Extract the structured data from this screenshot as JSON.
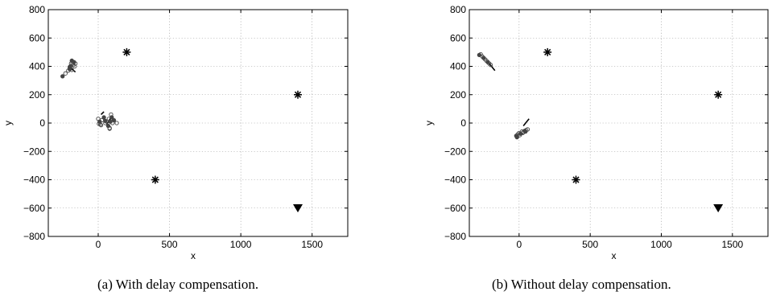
{
  "chart_data": [
    {
      "type": "scatter",
      "caption": "(a)  With delay compensation.",
      "xlabel": "x",
      "ylabel": "y",
      "xlim": [
        -350,
        1750
      ],
      "ylim": [
        -800,
        800
      ],
      "xticks": [
        0,
        500,
        1000,
        1500
      ],
      "xtick_labels": [
        "0",
        "500",
        "1000",
        "1500"
      ],
      "yticks": [
        -800,
        -600,
        -400,
        -200,
        0,
        200,
        400,
        600,
        800
      ],
      "ytick_labels": [
        "−800",
        "−600",
        "−400",
        "−200",
        "0",
        "200",
        "400",
        "600",
        "800"
      ],
      "grid": true,
      "series": [
        {
          "marker": "asterisk",
          "x": [
            200,
            1400,
            400
          ],
          "y": [
            500,
            200,
            -400
          ]
        },
        {
          "marker": "triangle-down",
          "x": [
            1400
          ],
          "y": [
            -600
          ]
        },
        {
          "marker": "circle-dot",
          "x": [
            -250,
            -230,
            -210,
            -200,
            -195,
            -190,
            -185,
            -180,
            -175,
            -170,
            -165,
            -160,
            -200,
            -185,
            0,
            10,
            15,
            25,
            40,
            50,
            60,
            70,
            75,
            80,
            85,
            90,
            100,
            110,
            130,
            20,
            50,
            80,
            5,
            95
          ],
          "y": [
            330,
            350,
            370,
            380,
            400,
            420,
            440,
            420,
            410,
            430,
            400,
            420,
            395,
            375,
            30,
            10,
            -10,
            20,
            40,
            0,
            10,
            -20,
            30,
            -40,
            10,
            60,
            0,
            20,
            0,
            -15,
            15,
            -35,
            -5,
            40
          ]
        }
      ],
      "arrows": [
        {
          "x": [
            -200,
            -160
          ],
          "y": [
            395,
            360
          ]
        },
        {
          "x": [
            60,
            90
          ],
          "y": [
            -10,
            40
          ]
        },
        {
          "x": [
            20,
            40
          ],
          "y": [
            60,
            80
          ]
        }
      ]
    },
    {
      "type": "scatter",
      "caption": "(b)  Without delay compensation.",
      "xlabel": "x",
      "ylabel": "y",
      "xlim": [
        -350,
        1750
      ],
      "ylim": [
        -800,
        800
      ],
      "xticks": [
        0,
        500,
        1000,
        1500
      ],
      "xtick_labels": [
        "0",
        "500",
        "1000",
        "1500"
      ],
      "yticks": [
        -800,
        -600,
        -400,
        -200,
        0,
        200,
        400,
        600,
        800
      ],
      "ytick_labels": [
        "−800",
        "−600",
        "−400",
        "−200",
        "0",
        "200",
        "400",
        "600",
        "800"
      ],
      "grid": true,
      "series": [
        {
          "marker": "asterisk",
          "x": [
            200,
            1400,
            400
          ],
          "y": [
            500,
            200,
            -400
          ]
        },
        {
          "marker": "triangle-down",
          "x": [
            1400
          ],
          "y": [
            -600
          ]
        },
        {
          "marker": "circle-dot",
          "x": [
            -280,
            -270,
            -260,
            -250,
            -240,
            -230,
            -220,
            -210,
            -200,
            -20,
            -10,
            0,
            10,
            20,
            30,
            40,
            50,
            60,
            -15,
            5,
            25,
            45
          ],
          "y": [
            480,
            485,
            470,
            460,
            450,
            440,
            430,
            420,
            410,
            -90,
            -80,
            -70,
            -75,
            -60,
            -65,
            -55,
            -50,
            -45,
            -100,
            -85,
            -70,
            -60
          ]
        }
      ],
      "arrows": [
        {
          "x": [
            -210,
            -170
          ],
          "y": [
            420,
            370
          ]
        },
        {
          "x": [
            30,
            70
          ],
          "y": [
            -20,
            30
          ]
        }
      ]
    }
  ]
}
